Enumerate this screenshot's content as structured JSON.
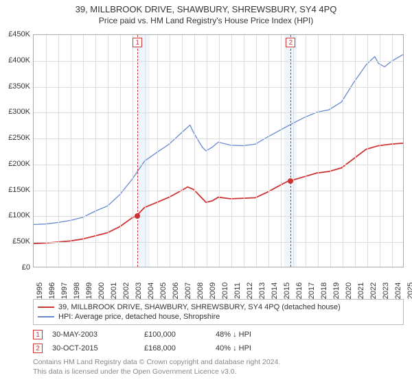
{
  "title": "39, MILLBROOK DRIVE, SHAWBURY, SHREWSBURY, SY4 4PQ",
  "subtitle": "Price paid vs. HM Land Registry's House Price Index (HPI)",
  "chart": {
    "type": "line",
    "background_color": "#ffffff",
    "grid_color": "#dddddd",
    "border_color": "#aaaaaa",
    "shade_color": "#e6f0fa",
    "x": {
      "min": 1995,
      "max": 2025,
      "step": 1,
      "label_fontsize": 11
    },
    "y": {
      "min": 0,
      "max": 450000,
      "step": 50000,
      "prefix": "£",
      "suffix": "K",
      "divisor": 1000,
      "label_fontsize": 11
    },
    "shaded_ranges": [
      {
        "from": 2003.4,
        "to": 2004.4
      },
      {
        "from": 2015.3,
        "to": 2016.3
      }
    ],
    "series": [
      {
        "id": "property",
        "label": "39, MILLBROOK DRIVE, SHAWBURY, SHREWSBURY, SY4 4PQ (detached house)",
        "color": "#cc3333",
        "line_width": 1.8,
        "data": [
          [
            1995,
            45000
          ],
          [
            1996,
            46000
          ],
          [
            1997,
            48000
          ],
          [
            1998,
            50000
          ],
          [
            1999,
            54000
          ],
          [
            2000,
            60000
          ],
          [
            2001,
            66000
          ],
          [
            2002,
            78000
          ],
          [
            2003,
            95000
          ],
          [
            2003.4,
            100000
          ],
          [
            2004,
            115000
          ],
          [
            2005,
            125000
          ],
          [
            2006,
            135000
          ],
          [
            2007,
            148000
          ],
          [
            2007.5,
            155000
          ],
          [
            2008,
            150000
          ],
          [
            2008.6,
            135000
          ],
          [
            2009,
            125000
          ],
          [
            2009.5,
            128000
          ],
          [
            2010,
            135000
          ],
          [
            2011,
            132000
          ],
          [
            2012,
            133000
          ],
          [
            2013,
            134000
          ],
          [
            2014,
            145000
          ],
          [
            2015,
            158000
          ],
          [
            2015.8,
            168000
          ],
          [
            2016,
            168000
          ],
          [
            2017,
            175000
          ],
          [
            2018,
            182000
          ],
          [
            2019,
            185000
          ],
          [
            2020,
            192000
          ],
          [
            2021,
            210000
          ],
          [
            2022,
            228000
          ],
          [
            2023,
            235000
          ],
          [
            2024,
            238000
          ],
          [
            2025,
            240000
          ]
        ]
      },
      {
        "id": "hpi",
        "label": "HPI: Average price, detached house, Shropshire",
        "color": "#6688cc",
        "line_width": 1.3,
        "data": [
          [
            1995,
            82000
          ],
          [
            1996,
            83000
          ],
          [
            1997,
            86000
          ],
          [
            1998,
            90000
          ],
          [
            1999,
            96000
          ],
          [
            2000,
            108000
          ],
          [
            2001,
            118000
          ],
          [
            2002,
            140000
          ],
          [
            2003,
            170000
          ],
          [
            2004,
            205000
          ],
          [
            2005,
            222000
          ],
          [
            2006,
            238000
          ],
          [
            2007,
            260000
          ],
          [
            2007.7,
            275000
          ],
          [
            2008,
            260000
          ],
          [
            2008.7,
            232000
          ],
          [
            2009,
            225000
          ],
          [
            2009.5,
            232000
          ],
          [
            2010,
            242000
          ],
          [
            2011,
            236000
          ],
          [
            2012,
            235000
          ],
          [
            2013,
            238000
          ],
          [
            2014,
            252000
          ],
          [
            2015,
            265000
          ],
          [
            2016,
            278000
          ],
          [
            2017,
            290000
          ],
          [
            2018,
            300000
          ],
          [
            2019,
            305000
          ],
          [
            2020,
            320000
          ],
          [
            2021,
            358000
          ],
          [
            2022,
            392000
          ],
          [
            2022.7,
            408000
          ],
          [
            2023,
            395000
          ],
          [
            2023.5,
            388000
          ],
          [
            2024,
            398000
          ],
          [
            2025,
            412000
          ]
        ]
      }
    ],
    "event_lines": [
      {
        "n": "1",
        "x": 2003.4,
        "marker_series": "property",
        "marker_y": 100000
      },
      {
        "n": "2",
        "x": 2015.8,
        "marker_series": "property",
        "marker_y": 168000
      }
    ],
    "event_line_color": "#cc3333",
    "marker_color": "#cc3333"
  },
  "legend": {
    "border_color": "#bbbbbb",
    "fontsize": 11
  },
  "events": [
    {
      "n": "1",
      "date": "30-MAY-2003",
      "price": "£100,000",
      "delta": "48% ↓ HPI"
    },
    {
      "n": "2",
      "date": "30-OCT-2015",
      "price": "£168,000",
      "delta": "40% ↓ HPI"
    }
  ],
  "footer": {
    "line1": "Contains HM Land Registry data © Crown copyright and database right 2024.",
    "line2": "This data is licensed under the Open Government Licence v3.0.",
    "color": "#888888"
  }
}
